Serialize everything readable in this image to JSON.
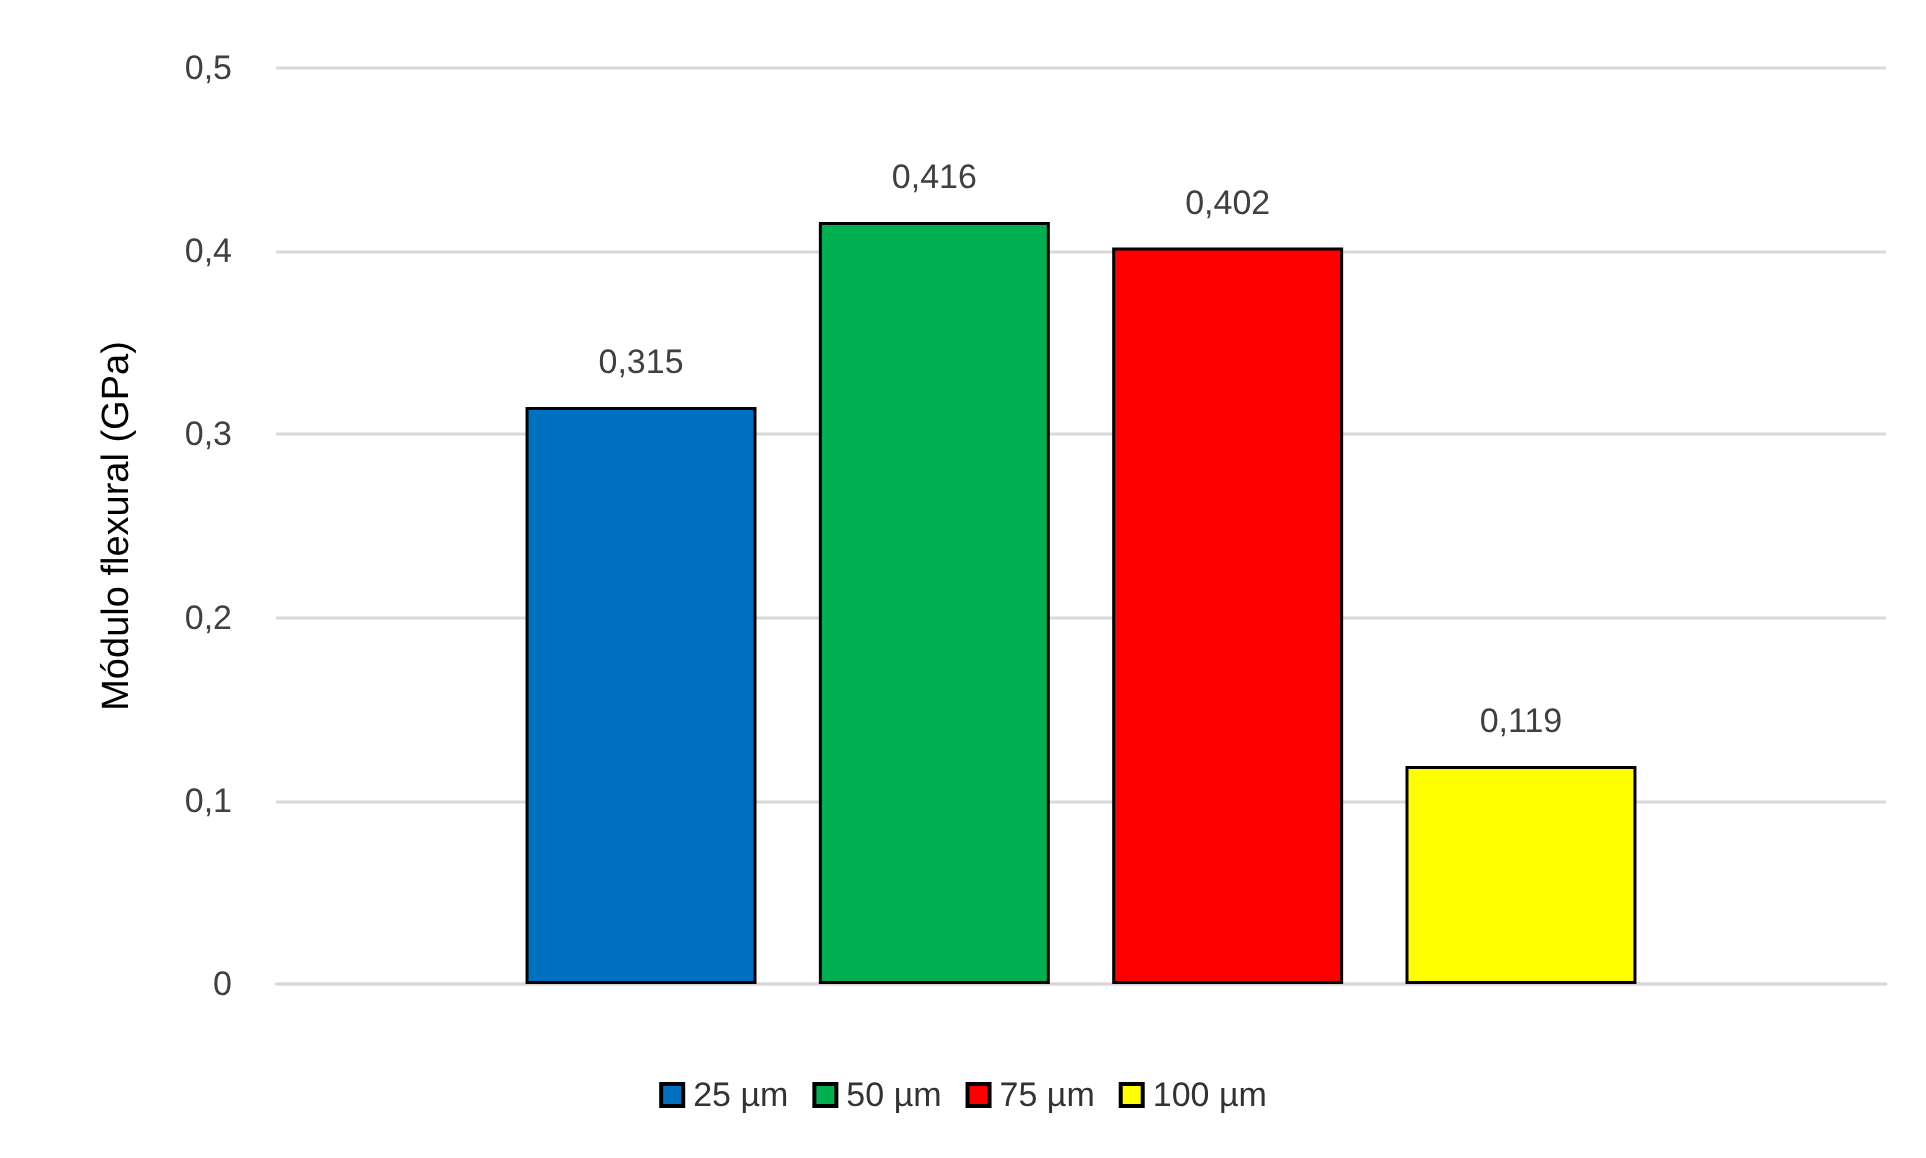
{
  "chart_data": {
    "type": "bar",
    "ylabel": "Módulo flexural (GPa)",
    "categories": [
      null
    ],
    "series": [
      {
        "name": "25 µm",
        "color": "#0070c0",
        "values": [
          0.315
        ],
        "value_labels": [
          "0,315"
        ]
      },
      {
        "name": "50 µm",
        "color": "#00b050",
        "values": [
          0.416
        ],
        "value_labels": [
          "0,416"
        ]
      },
      {
        "name": "75 µm",
        "color": "#ff0000",
        "values": [
          0.402
        ],
        "value_labels": [
          "0,402"
        ]
      },
      {
        "name": "100 µm",
        "color": "#ffff00",
        "values": [
          0.119
        ],
        "value_labels": [
          "0,119"
        ]
      }
    ],
    "ylim": [
      0,
      0.5
    ],
    "yticks": [
      0,
      {
        "value": 0.1,
        "label": "0,1"
      },
      {
        "value": 0.2,
        "label": "0,2"
      },
      {
        "value": 0.3,
        "label": "0,3"
      },
      {
        "value": 0.4,
        "label": "0,4"
      },
      {
        "value": 0.5,
        "label": "0,5"
      }
    ],
    "grid": "y",
    "legend": "bottom"
  }
}
